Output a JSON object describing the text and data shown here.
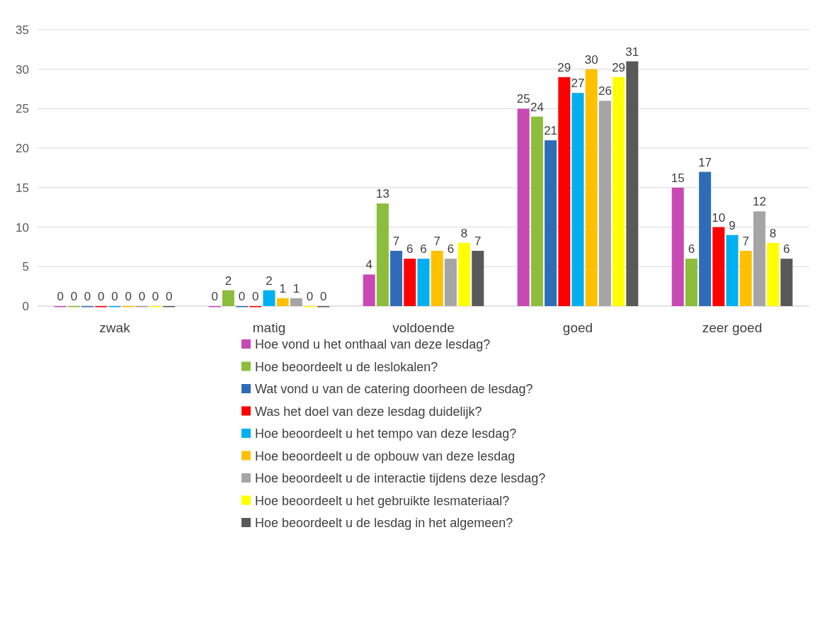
{
  "chart_data": {
    "type": "bar",
    "categories": [
      "zwak",
      "matig",
      "voldoende",
      "goed",
      "zeer goed"
    ],
    "series": [
      {
        "name": "Hoe vond u het onthaal van deze lesdag?",
        "color": "#c849b4",
        "values": [
          0,
          0,
          4,
          25,
          15
        ]
      },
      {
        "name": "Hoe beoordeelt u de leslokalen?",
        "color": "#8cbd3b",
        "values": [
          0,
          2,
          13,
          24,
          6
        ]
      },
      {
        "name": "Wat vond u van de catering doorheen de lesdag?",
        "color": "#2e6cb8",
        "values": [
          0,
          0,
          7,
          21,
          17
        ]
      },
      {
        "name": "Was het doel van deze lesdag duidelijk?",
        "color": "#ff0000",
        "values": [
          0,
          0,
          6,
          29,
          10
        ]
      },
      {
        "name": "Hoe beoordeelt u het tempo van deze lesdag?",
        "color": "#00b0f0",
        "values": [
          0,
          2,
          6,
          27,
          9
        ]
      },
      {
        "name": "Hoe beoordeelt u de opbouw van deze lesdag",
        "color": "#ffc000",
        "values": [
          0,
          1,
          7,
          30,
          7
        ]
      },
      {
        "name": "Hoe beoordeelt u de interactie tijdens deze lesdag?",
        "color": "#a5a5a5",
        "values": [
          0,
          1,
          6,
          26,
          12
        ]
      },
      {
        "name": "Hoe beoordeelt u het gebruikte lesmateriaal?",
        "color": "#ffff00",
        "values": [
          0,
          0,
          8,
          29,
          8
        ]
      },
      {
        "name": "Hoe beoordeelt u de lesdag in het algemeen?",
        "color": "#595959",
        "values": [
          0,
          0,
          7,
          31,
          6
        ]
      }
    ],
    "ylim": [
      0,
      35
    ],
    "yticks": [
      0,
      5,
      10,
      15,
      20,
      25,
      30,
      35
    ],
    "grid": "y",
    "legend": "bottom",
    "data_labels": true
  }
}
